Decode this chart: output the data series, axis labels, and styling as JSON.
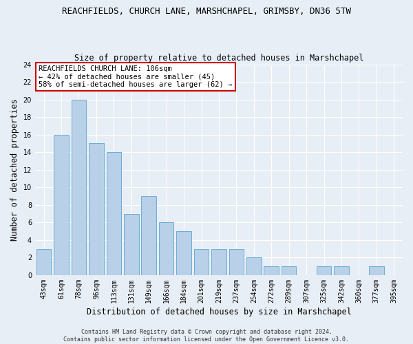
{
  "title": "REACHFIELDS, CHURCH LANE, MARSHCHAPEL, GRIMSBY, DN36 5TW",
  "subtitle": "Size of property relative to detached houses in Marshchapel",
  "xlabel": "Distribution of detached houses by size in Marshchapel",
  "ylabel": "Number of detached properties",
  "categories": [
    "43sqm",
    "61sqm",
    "78sqm",
    "96sqm",
    "113sqm",
    "131sqm",
    "149sqm",
    "166sqm",
    "184sqm",
    "201sqm",
    "219sqm",
    "237sqm",
    "254sqm",
    "272sqm",
    "289sqm",
    "307sqm",
    "325sqm",
    "342sqm",
    "360sqm",
    "377sqm",
    "395sqm"
  ],
  "values": [
    3,
    16,
    20,
    15,
    14,
    7,
    9,
    6,
    5,
    3,
    3,
    3,
    2,
    1,
    1,
    0,
    1,
    1,
    0,
    1,
    0
  ],
  "bar_color": "#b8d0e8",
  "bar_edge_color": "#6baed6",
  "ylim": [
    0,
    24
  ],
  "yticks": [
    0,
    2,
    4,
    6,
    8,
    10,
    12,
    14,
    16,
    18,
    20,
    22,
    24
  ],
  "annotation_text": "REACHFIELDS CHURCH LANE: 106sqm\n← 42% of detached houses are smaller (45)\n58% of semi-detached houses are larger (62) →",
  "annotation_box_color": "#ffffff",
  "annotation_box_edge_color": "#cc0000",
  "footer_text": "Contains HM Land Registry data © Crown copyright and database right 2024.\nContains public sector information licensed under the Open Government Licence v3.0.",
  "background_color": "#e8eef5",
  "grid_color": "#ffffff",
  "title_fontsize": 9,
  "subtitle_fontsize": 8.5,
  "xlabel_fontsize": 8.5,
  "ylabel_fontsize": 8.5,
  "tick_fontsize": 7,
  "annotation_fontsize": 7.5,
  "footer_fontsize": 6,
  "property_line_x": 3.5
}
